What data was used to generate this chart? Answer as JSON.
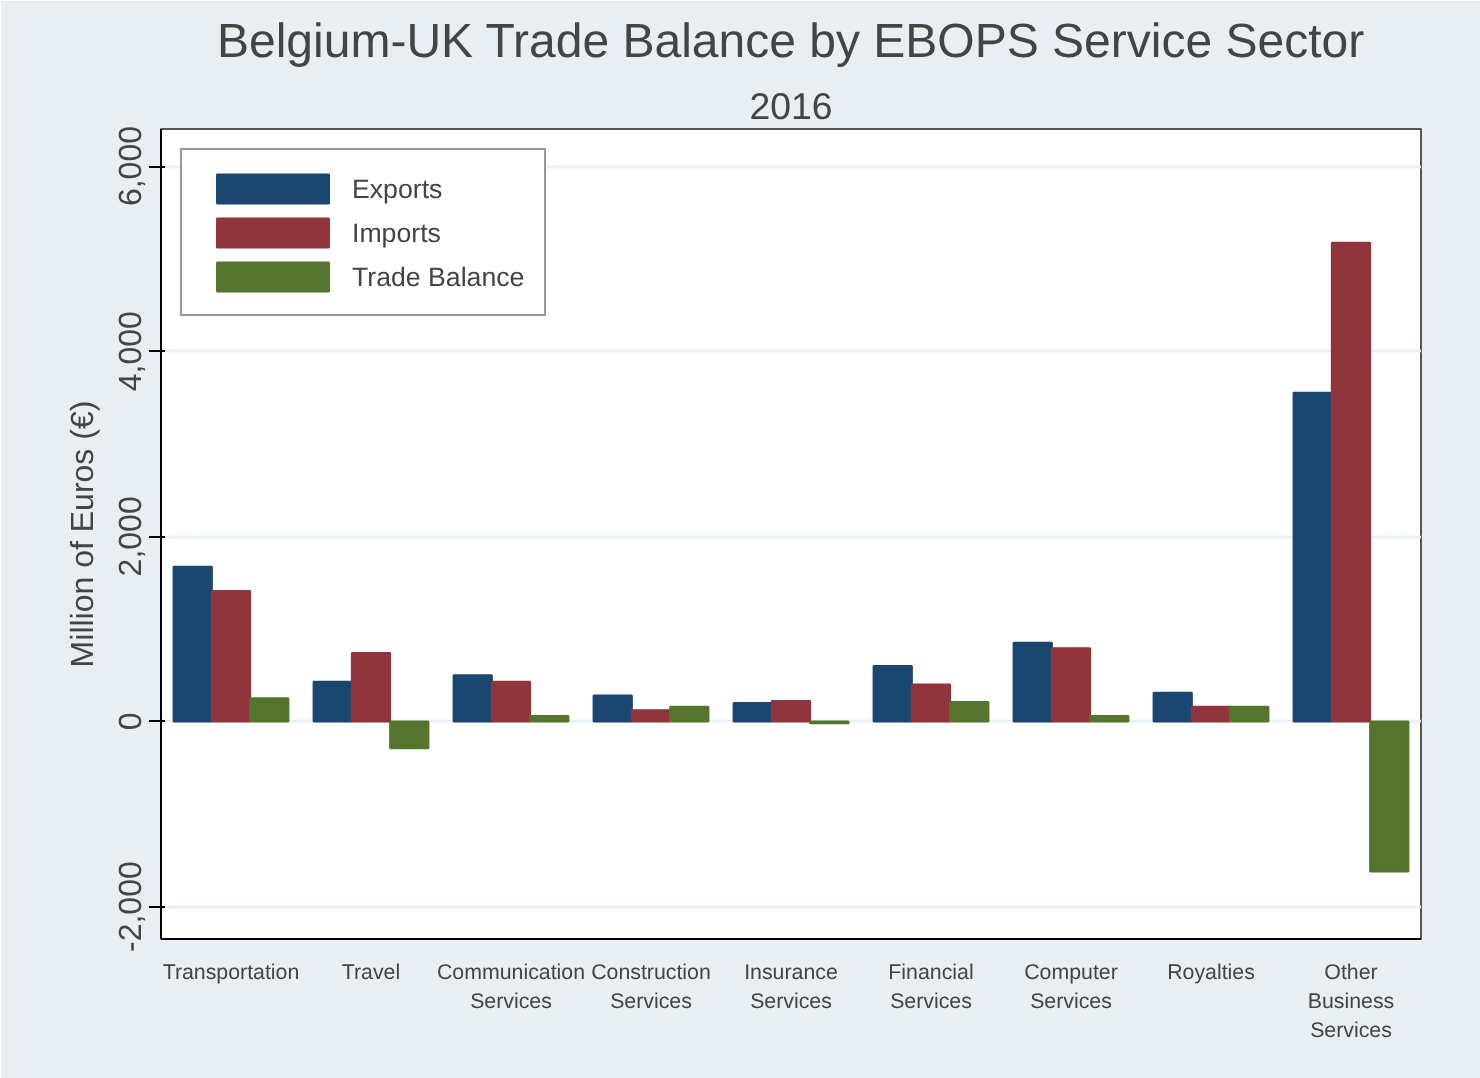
{
  "chart_data": {
    "type": "bar",
    "title": "Belgium-UK Trade Balance by EBOPS Service Sector",
    "subtitle": "2016",
    "ylabel": "Million of Euros (€)",
    "categories": [
      "Transportation",
      "Travel",
      "Communication Services",
      "Construction Services",
      "Insurance Services",
      "Financial Services",
      "Computer Services",
      "Royalties",
      "Other Business Services"
    ],
    "series": [
      {
        "name": "Exports",
        "color": "#1a476f",
        "values": [
          1670,
          430,
          500,
          280,
          200,
          600,
          850,
          310,
          3550
        ]
      },
      {
        "name": "Imports",
        "color": "#90353b",
        "values": [
          1410,
          740,
          430,
          120,
          220,
          400,
          790,
          160,
          5170
        ]
      },
      {
        "name": "Trade Balance",
        "color": "#55752f",
        "values": [
          250,
          -290,
          60,
          160,
          -20,
          210,
          60,
          160,
          -1620
        ]
      }
    ],
    "ylim": [
      -2350,
      6400
    ],
    "yticks": [
      {
        "value": -2000,
        "label": "-2,000"
      },
      0,
      {
        "value": 2000,
        "label": "2,000"
      },
      {
        "value": 4000,
        "label": "4,000"
      },
      {
        "value": 6000,
        "label": "6,000"
      }
    ],
    "grid": "y",
    "legend": "top left"
  }
}
